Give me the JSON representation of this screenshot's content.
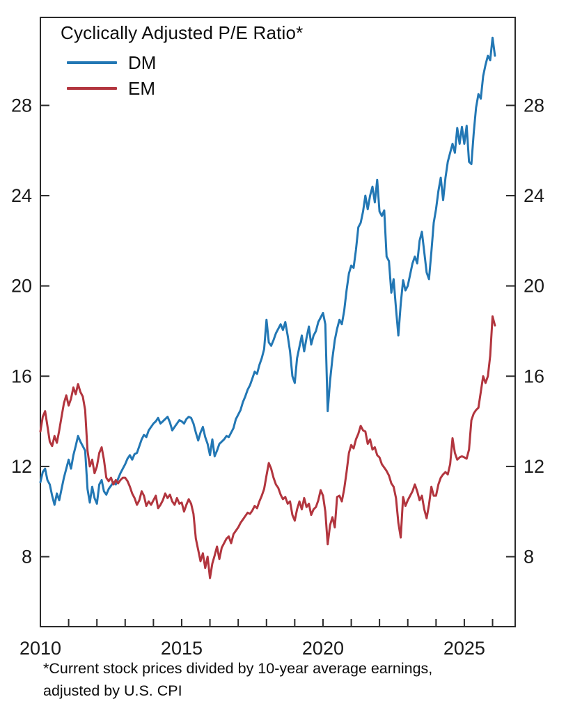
{
  "chart": {
    "title": "Cyclically Adjusted P/E Ratio*",
    "footnote_line1": "*Current stock prices divided by 10-year average earnings,",
    "footnote_line2": "adjusted by U.S. CPI",
    "legend": {
      "dm_label": "DM",
      "em_label": "EM"
    }
  },
  "chart_data": {
    "type": "line",
    "title": "Cyclically Adjusted P/E Ratio*",
    "footnote": "*Current stock prices divided by 10-year average earnings, adjusted by U.S. CPI",
    "x_start": 2010.0,
    "x_step": 0.0833333,
    "xlim": [
      2010,
      2026.8
    ],
    "ylim": [
      4.9,
      31.9
    ],
    "x_minor_tick_years": [
      2010,
      2011,
      2012,
      2013,
      2014,
      2015,
      2016,
      2017,
      2018,
      2019,
      2020,
      2021,
      2022,
      2023,
      2024,
      2025,
      2026
    ],
    "x_tick_labels": [
      2010,
      2015,
      2020,
      2025
    ],
    "y_ticks": [
      8,
      12,
      16,
      20,
      24,
      28
    ],
    "y_axis_sides": "both",
    "grid": false,
    "legend_position": "top-left-inside",
    "axis_color": "#2b2b2b",
    "series": [
      {
        "name": "DM",
        "color": "#2277b4",
        "values": [
          11.3,
          11.75,
          11.9,
          11.4,
          11.2,
          10.7,
          10.3,
          10.8,
          10.5,
          11.0,
          11.5,
          11.9,
          12.3,
          11.9,
          12.5,
          12.9,
          13.35,
          13.1,
          12.9,
          12.7,
          11.0,
          10.4,
          11.1,
          10.6,
          10.35,
          11.2,
          11.4,
          10.9,
          10.75,
          11.0,
          11.15,
          11.3,
          11.2,
          11.45,
          11.7,
          11.9,
          12.1,
          12.35,
          12.5,
          12.3,
          12.55,
          12.6,
          12.9,
          13.2,
          13.4,
          13.3,
          13.6,
          13.75,
          13.9,
          14.0,
          14.15,
          13.9,
          14.0,
          14.1,
          14.2,
          13.95,
          13.6,
          13.75,
          13.9,
          14.05,
          14.0,
          13.9,
          14.1,
          14.2,
          14.15,
          13.9,
          13.5,
          13.15,
          13.5,
          13.75,
          13.3,
          13.0,
          12.5,
          13.2,
          12.45,
          12.7,
          13.0,
          13.1,
          13.2,
          13.35,
          13.3,
          13.5,
          13.7,
          14.1,
          14.3,
          14.5,
          14.85,
          15.1,
          15.4,
          15.6,
          15.9,
          16.2,
          16.1,
          16.5,
          16.8,
          17.2,
          18.5,
          17.5,
          17.35,
          17.6,
          17.9,
          18.1,
          18.3,
          18.05,
          18.4,
          17.8,
          17.1,
          16.0,
          15.7,
          16.8,
          17.3,
          17.8,
          17.1,
          17.7,
          18.2,
          17.4,
          17.8,
          18.0,
          18.4,
          18.6,
          18.8,
          18.3,
          14.45,
          15.8,
          16.8,
          17.6,
          18.1,
          18.5,
          18.3,
          18.9,
          19.8,
          20.55,
          20.9,
          20.8,
          21.6,
          22.6,
          22.8,
          23.3,
          24.0,
          23.4,
          24.0,
          24.4,
          23.7,
          24.7,
          23.3,
          23.1,
          23.35,
          21.3,
          21.1,
          19.7,
          20.3,
          19.0,
          17.8,
          19.2,
          20.25,
          19.8,
          20.0,
          20.5,
          21.0,
          21.3,
          21.0,
          22.0,
          22.4,
          21.5,
          20.6,
          20.3,
          21.5,
          22.8,
          23.4,
          24.2,
          24.8,
          23.8,
          24.8,
          25.5,
          25.9,
          26.3,
          25.9,
          27.0,
          26.3,
          27.05,
          26.3,
          27.1,
          25.5,
          25.4,
          26.8,
          27.9,
          28.5,
          28.3,
          29.3,
          29.8,
          30.2,
          30.0,
          31.0,
          30.2
        ]
      },
      {
        "name": "EM",
        "color": "#b2353e",
        "values": [
          13.55,
          14.2,
          14.45,
          13.8,
          13.1,
          12.9,
          13.35,
          13.05,
          13.6,
          14.2,
          14.8,
          15.15,
          14.7,
          15.0,
          15.5,
          15.2,
          15.65,
          15.3,
          15.1,
          14.5,
          12.7,
          12.0,
          12.3,
          11.7,
          12.0,
          12.6,
          12.85,
          12.3,
          11.5,
          11.35,
          11.5,
          11.2,
          11.4,
          11.25,
          11.4,
          11.5,
          11.5,
          11.35,
          11.1,
          10.8,
          10.6,
          10.3,
          10.5,
          10.9,
          10.7,
          10.25,
          10.45,
          10.3,
          10.5,
          10.7,
          10.15,
          10.3,
          10.5,
          10.8,
          10.6,
          10.75,
          10.45,
          10.3,
          10.6,
          10.35,
          10.4,
          10.0,
          10.3,
          10.55,
          10.35,
          9.9,
          8.8,
          8.3,
          7.8,
          8.15,
          7.5,
          8.0,
          7.05,
          7.7,
          8.05,
          8.45,
          7.9,
          8.4,
          8.6,
          8.8,
          8.9,
          8.6,
          9.0,
          9.15,
          9.3,
          9.5,
          9.65,
          9.8,
          9.95,
          9.9,
          10.05,
          10.25,
          10.15,
          10.45,
          10.7,
          11.0,
          11.6,
          12.15,
          11.9,
          11.5,
          11.2,
          11.05,
          10.75,
          10.55,
          10.65,
          10.35,
          10.45,
          9.85,
          9.6,
          10.1,
          10.45,
          10.1,
          10.6,
          10.2,
          10.35,
          9.85,
          10.1,
          10.2,
          10.5,
          10.95,
          10.7,
          10.0,
          8.55,
          9.4,
          9.75,
          9.3,
          10.65,
          10.7,
          10.45,
          11.0,
          11.75,
          12.6,
          12.95,
          12.8,
          13.2,
          13.45,
          13.8,
          13.6,
          13.55,
          13.0,
          13.2,
          12.75,
          12.85,
          12.5,
          12.4,
          12.1,
          11.95,
          11.8,
          11.6,
          11.25,
          11.1,
          10.6,
          9.5,
          8.85,
          10.65,
          10.25,
          10.5,
          10.7,
          10.9,
          11.2,
          10.9,
          10.5,
          10.7,
          10.1,
          9.7,
          10.3,
          11.1,
          10.7,
          10.7,
          11.2,
          11.5,
          11.65,
          11.75,
          11.65,
          12.1,
          13.25,
          12.6,
          12.3,
          12.4,
          12.45,
          12.4,
          12.35,
          12.75,
          14.05,
          14.35,
          14.5,
          14.6,
          15.3,
          16.0,
          15.7,
          16.0,
          16.9,
          18.65,
          18.25
        ]
      }
    ]
  }
}
